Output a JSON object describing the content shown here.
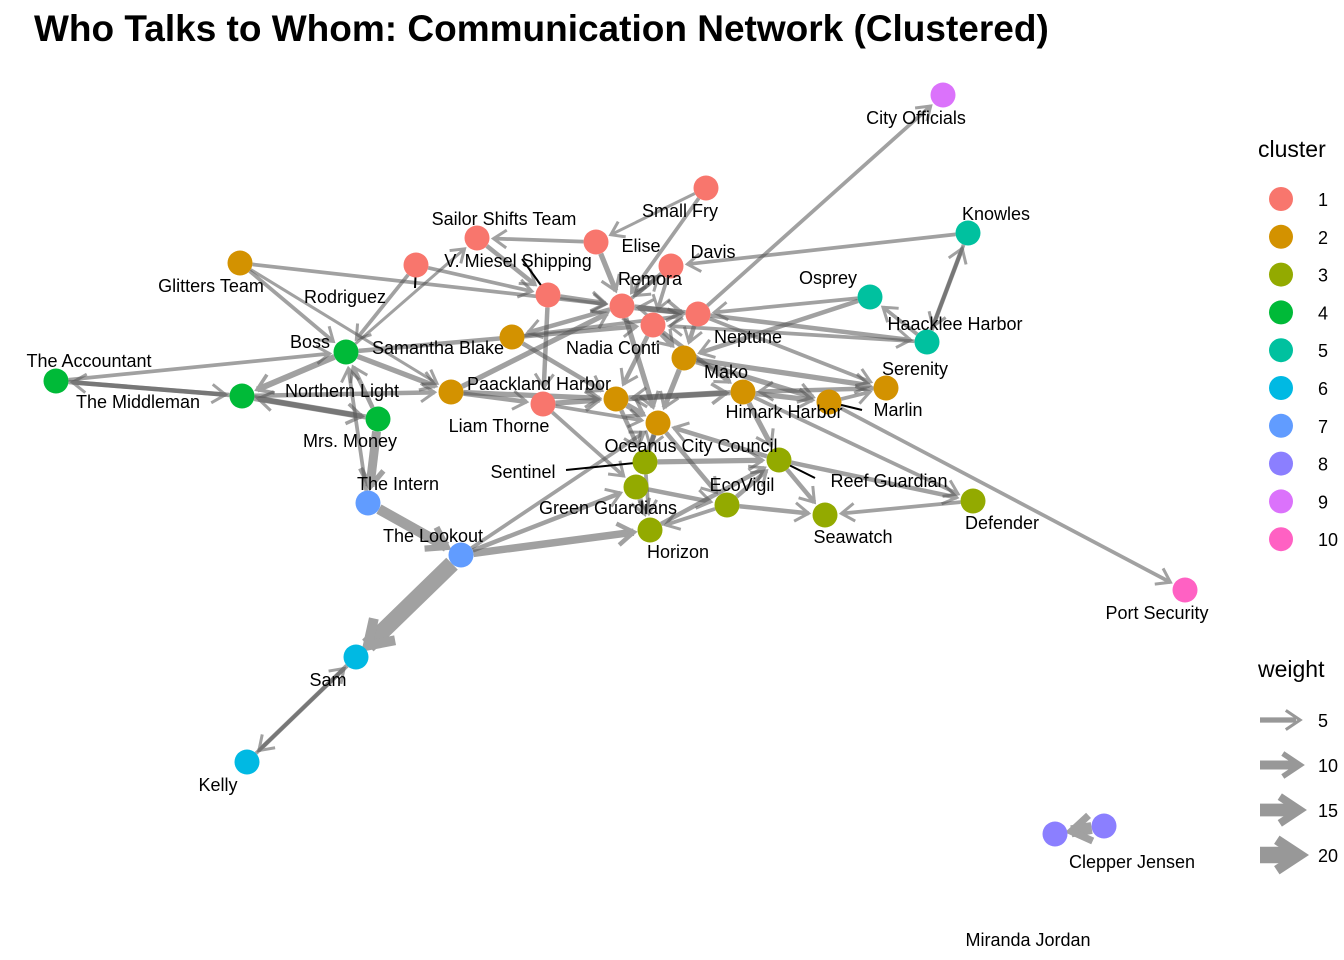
{
  "title": "Who Talks to Whom: Communication Network (Clustered)",
  "legend": {
    "cluster_title": "cluster",
    "weight_title": "weight",
    "cluster_colors": [
      "#F8766D",
      "#D39200",
      "#93AA00",
      "#00BA38",
      "#00C19F",
      "#00B9E3",
      "#619CFF",
      "#8B7FFF",
      "#DB72FB",
      "#FF61C3"
    ],
    "clusters": [
      "1",
      "2",
      "3",
      "4",
      "5",
      "6",
      "7",
      "8",
      "9",
      "10"
    ],
    "weights": [
      5,
      10,
      15,
      20
    ]
  },
  "nodes": [
    {
      "id": "city_officials",
      "label": "City Officials",
      "cluster": 9
    },
    {
      "id": "small_fry",
      "label": "Small Fry",
      "cluster": 1
    },
    {
      "id": "knowles",
      "label": "Knowles",
      "cluster": 5
    },
    {
      "id": "sailor_shifts",
      "label": "Sailor Shifts Team",
      "cluster": 1
    },
    {
      "id": "elise",
      "label": "Elise",
      "cluster": 1
    },
    {
      "id": "davis",
      "label": "Davis",
      "cluster": 1
    },
    {
      "id": "glitters",
      "label": "Glitters Team",
      "cluster": 2
    },
    {
      "id": "v_miesel",
      "label": "V. Miesel Shipping",
      "cluster": 1
    },
    {
      "id": "rodriguez",
      "label": "Rodriguez",
      "cluster": 1
    },
    {
      "id": "osprey",
      "label": "Osprey",
      "cluster": 5
    },
    {
      "id": "remora",
      "label": "Remora",
      "cluster": 1
    },
    {
      "id": "haacklee",
      "label": "Haacklee Harbor",
      "cluster": 5
    },
    {
      "id": "neptune",
      "label": "Neptune",
      "cluster": 1
    },
    {
      "id": "the_accountant",
      "label": "The Accountant",
      "cluster": 4
    },
    {
      "id": "boss",
      "label": "Boss",
      "cluster": 4
    },
    {
      "id": "samantha_blake",
      "label": "Samantha Blake",
      "cluster": 2
    },
    {
      "id": "nadia_conti",
      "label": "Nadia Conti",
      "cluster": 1
    },
    {
      "id": "serenity",
      "label": "Serenity",
      "cluster": 2
    },
    {
      "id": "the_middleman",
      "label": "The Middleman",
      "cluster": 4
    },
    {
      "id": "northern_light",
      "label": "Northern Light",
      "cluster": 2
    },
    {
      "id": "mako",
      "label": "Mako",
      "cluster": 2
    },
    {
      "id": "paackland",
      "label": "Paackland Harbor",
      "cluster": 2
    },
    {
      "id": "himark",
      "label": "Himark Harbor",
      "cluster": 2
    },
    {
      "id": "marlin",
      "label": "Marlin",
      "cluster": 2
    },
    {
      "id": "mrs_money",
      "label": "Mrs. Money",
      "cluster": 4
    },
    {
      "id": "liam_thorne",
      "label": "Liam Thorne",
      "cluster": 1
    },
    {
      "id": "oceanus",
      "label": "Oceanus City Council",
      "cluster": 2
    },
    {
      "id": "the_intern",
      "label": "The Intern",
      "cluster": 7
    },
    {
      "id": "sentinel",
      "label": "Sentinel",
      "cluster": 3
    },
    {
      "id": "reef_guardian",
      "label": "Reef Guardian",
      "cluster": 3
    },
    {
      "id": "ecovigil",
      "label": "EcoVigil",
      "cluster": 3
    },
    {
      "id": "defender",
      "label": "Defender",
      "cluster": 3
    },
    {
      "id": "green_guardians",
      "label": "Green Guardians",
      "cluster": 3
    },
    {
      "id": "seawatch",
      "label": "Seawatch",
      "cluster": 3
    },
    {
      "id": "the_lookout",
      "label": "The Lookout",
      "cluster": 7
    },
    {
      "id": "horizon",
      "label": "Horizon",
      "cluster": 3
    },
    {
      "id": "port_security",
      "label": "Port Security",
      "cluster": 10
    },
    {
      "id": "sam",
      "label": "Sam",
      "cluster": 6
    },
    {
      "id": "kelly",
      "label": "Kelly",
      "cluster": 6
    },
    {
      "id": "clepper",
      "label": "Clepper Jensen",
      "cluster": 8
    },
    {
      "id": "miranda",
      "label": "Miranda Jordan",
      "cluster": 8
    }
  ],
  "edges": [
    {
      "from": "the_lookout",
      "to": "sam",
      "weight": 20
    },
    {
      "from": "the_intern",
      "to": "the_lookout",
      "weight": 12
    },
    {
      "from": "sam",
      "to": "kelly",
      "weight": 4
    },
    {
      "from": "kelly",
      "to": "sam",
      "weight": 3
    },
    {
      "from": "clepper",
      "to": "miranda",
      "weight": 14
    },
    {
      "from": "mrs_money",
      "to": "the_intern",
      "weight": 10
    },
    {
      "from": "the_lookout",
      "to": "horizon",
      "weight": 8
    },
    {
      "from": "the_middleman",
      "to": "the_accountant",
      "weight": 4
    },
    {
      "from": "the_accountant",
      "to": "the_middleman",
      "weight": 4
    },
    {
      "from": "the_accountant",
      "to": "boss",
      "weight": 3
    },
    {
      "from": "boss",
      "to": "the_middleman",
      "weight": 6
    },
    {
      "from": "the_middleman",
      "to": "mrs_money",
      "weight": 6
    },
    {
      "from": "mrs_money",
      "to": "the_middleman",
      "weight": 5
    },
    {
      "from": "the_middleman",
      "to": "northern_light",
      "weight": 4
    },
    {
      "from": "glitters",
      "to": "boss",
      "weight": 3
    },
    {
      "from": "glitters",
      "to": "remora",
      "weight": 3
    },
    {
      "from": "rodriguez",
      "to": "boss",
      "weight": 3
    },
    {
      "from": "boss",
      "to": "nadia_conti",
      "weight": 4
    },
    {
      "from": "northern_light",
      "to": "remora",
      "weight": 5
    },
    {
      "from": "northern_light",
      "to": "liam_thorne",
      "weight": 4
    },
    {
      "from": "liam_thorne",
      "to": "oceanus",
      "weight": 3
    },
    {
      "from": "sailor_shifts",
      "to": "v_miesel",
      "weight": 4
    },
    {
      "from": "elise",
      "to": "remora",
      "weight": 5
    },
    {
      "from": "small_fry",
      "to": "remora",
      "weight": 3
    },
    {
      "from": "davis",
      "to": "remora",
      "weight": 4
    },
    {
      "from": "knowles",
      "to": "davis",
      "weight": 3
    },
    {
      "from": "knowles",
      "to": "haacklee",
      "weight": 3
    },
    {
      "from": "haacklee",
      "to": "knowles",
      "weight": 4
    },
    {
      "from": "haacklee",
      "to": "osprey",
      "weight": 3
    },
    {
      "from": "osprey",
      "to": "mako",
      "weight": 4
    },
    {
      "from": "neptune",
      "to": "city_officials",
      "weight": 3
    },
    {
      "from": "neptune",
      "to": "haacklee",
      "weight": 4
    },
    {
      "from": "mako",
      "to": "serenity",
      "weight": 5
    },
    {
      "from": "marlin",
      "to": "port_security",
      "weight": 3
    },
    {
      "from": "himark",
      "to": "marlin",
      "weight": 5
    },
    {
      "from": "reef_guardian",
      "to": "defender",
      "weight": 4
    },
    {
      "from": "defender",
      "to": "seawatch",
      "weight": 3
    },
    {
      "from": "reef_guardian",
      "to": "seawatch",
      "weight": 4
    },
    {
      "from": "ecovigil",
      "to": "seawatch",
      "weight": 4
    },
    {
      "from": "green_guardians",
      "to": "horizon",
      "weight": 5
    },
    {
      "from": "sentinel",
      "to": "reef_guardian",
      "weight": 5
    },
    {
      "from": "oceanus",
      "to": "sentinel",
      "weight": 4
    },
    {
      "from": "paackland",
      "to": "himark",
      "weight": 6
    },
    {
      "from": "himark",
      "to": "paackland",
      "weight": 5
    },
    {
      "from": "mako",
      "to": "oceanus",
      "weight": 5
    },
    {
      "from": "nadia_conti",
      "to": "mako",
      "weight": 5
    },
    {
      "from": "remora",
      "to": "neptune",
      "weight": 6
    },
    {
      "from": "neptune",
      "to": "remora",
      "weight": 5
    },
    {
      "from": "v_miesel",
      "to": "remora",
      "weight": 5
    },
    {
      "from": "remora",
      "to": "samantha_blake",
      "weight": 4
    },
    {
      "from": "samantha_blake",
      "to": "paackland",
      "weight": 4
    },
    {
      "from": "liam_thorne",
      "to": "paackland",
      "weight": 5
    },
    {
      "from": "paackland",
      "to": "oceanus",
      "weight": 6
    },
    {
      "from": "oceanus",
      "to": "green_guardians",
      "weight": 5
    },
    {
      "from": "green_guardians",
      "to": "ecovigil",
      "weight": 4
    },
    {
      "from": "ecovigil",
      "to": "reef_guardian",
      "weight": 4
    },
    {
      "from": "horizon",
      "to": "reef_guardian",
      "weight": 4
    },
    {
      "from": "the_lookout",
      "to": "green_guardians",
      "weight": 4
    },
    {
      "from": "northern_light",
      "to": "paackland",
      "weight": 5
    },
    {
      "from": "boss",
      "to": "northern_light",
      "weight": 5
    },
    {
      "from": "mrs_money",
      "to": "boss",
      "weight": 4
    },
    {
      "from": "rodriguez",
      "to": "v_miesel",
      "weight": 3
    },
    {
      "from": "nadia_conti",
      "to": "himark",
      "weight": 4
    },
    {
      "from": "serenity",
      "to": "himark",
      "weight": 4
    },
    {
      "from": "marlin",
      "to": "serenity",
      "weight": 3
    },
    {
      "from": "himark",
      "to": "reef_guardian",
      "weight": 5
    },
    {
      "from": "oceanus",
      "to": "ecovigil",
      "weight": 4
    },
    {
      "from": "sentinel",
      "to": "horizon",
      "weight": 3
    },
    {
      "from": "neptune",
      "to": "mako",
      "weight": 4
    },
    {
      "from": "davis",
      "to": "nadia_conti",
      "weight": 3
    },
    {
      "from": "elise",
      "to": "sailor_shifts",
      "weight": 3
    },
    {
      "from": "small_fry",
      "to": "elise",
      "weight": 2
    },
    {
      "from": "remora",
      "to": "oceanus",
      "weight": 5
    },
    {
      "from": "v_miesel",
      "to": "liam_thorne",
      "weight": 4
    },
    {
      "from": "samantha_blake",
      "to": "neptune",
      "weight": 3
    },
    {
      "from": "glitters",
      "to": "northern_light",
      "weight": 2
    },
    {
      "from": "boss",
      "to": "sailor_shifts",
      "weight": 2
    },
    {
      "from": "the_intern",
      "to": "boss",
      "weight": 3
    },
    {
      "from": "haacklee",
      "to": "nadia_conti",
      "weight": 3
    },
    {
      "from": "osprey",
      "to": "neptune",
      "weight": 3
    },
    {
      "from": "himark",
      "to": "defender",
      "weight": 3
    },
    {
      "from": "mako",
      "to": "marlin",
      "weight": 5
    },
    {
      "from": "reef_guardian",
      "to": "oceanus",
      "weight": 4
    },
    {
      "from": "ecovigil",
      "to": "horizon",
      "weight": 3
    },
    {
      "from": "liam_thorne",
      "to": "green_guardians",
      "weight": 3
    },
    {
      "from": "paackland",
      "to": "sentinel",
      "weight": 4
    },
    {
      "from": "the_lookout",
      "to": "oceanus",
      "weight": 3
    },
    {
      "from": "remora",
      "to": "davis",
      "weight": 3
    },
    {
      "from": "neptune",
      "to": "serenity",
      "weight": 3
    },
    {
      "from": "nadia_conti",
      "to": "paackland",
      "weight": 4
    }
  ]
}
